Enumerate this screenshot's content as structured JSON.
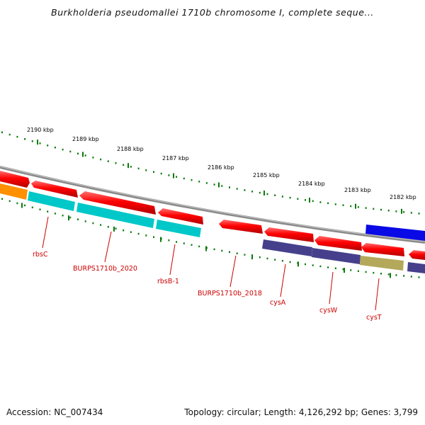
{
  "header": {
    "title": "Burkholderia pseudomallei 1710b chromosome I, complete seque..."
  },
  "footer": {
    "accession": "Accession: NC_007434",
    "topology": "Topology: circular; Length: 4,126,292 bp; Genes: 3,799"
  },
  "ruler": {
    "labels": [
      "2190 kbp",
      "2189 kbp",
      "2188 kbp",
      "2187 kbp",
      "2186 kbp",
      "2185 kbp",
      "2184 kbp",
      "2183 kbp",
      "2182 kbp"
    ]
  },
  "genes": {
    "labels": [
      "rbsC",
      "BURPS1710b_2020",
      "rbsB-1",
      "BURPS1710b_2018",
      "cysA",
      "cysW",
      "cysT"
    ]
  },
  "colors": {
    "cds_red": "#ff0000",
    "cyan": "#00c8c8",
    "purple": "#46408c",
    "olive": "#b4a85a",
    "orange": "#ff9000",
    "blue": "#0a0ae6",
    "backbone": "#808080",
    "ticks": "#0a7a0a",
    "gene_label": "#cc0000"
  }
}
